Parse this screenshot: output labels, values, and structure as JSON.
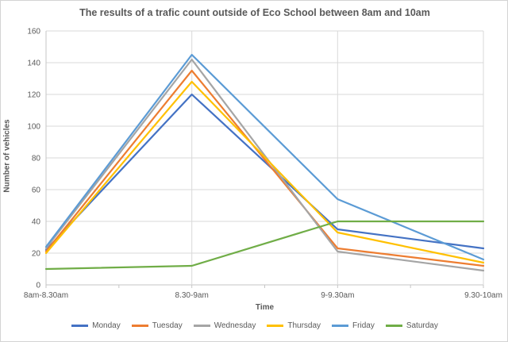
{
  "chart_data": {
    "type": "line",
    "title": "The results of a trafic count outside of Eco School between 8am and 10am",
    "xlabel": "Time",
    "ylabel": "Number of vehicles",
    "categories": [
      "8am-8.30am",
      "8.30-9am",
      "9-9.30am",
      "9.30-10am"
    ],
    "series": [
      {
        "name": "Monday",
        "color": "#4472C4",
        "values": [
          22,
          120,
          35,
          23
        ]
      },
      {
        "name": "Tuesday",
        "color": "#ED7D31",
        "values": [
          21,
          135,
          23,
          12
        ]
      },
      {
        "name": "Wednesday",
        "color": "#A5A5A5",
        "values": [
          23,
          142,
          21,
          9
        ]
      },
      {
        "name": "Thursday",
        "color": "#FFC000",
        "values": [
          20,
          128,
          33,
          14
        ]
      },
      {
        "name": "Friday",
        "color": "#5B9BD5",
        "values": [
          24,
          145,
          54,
          16
        ]
      },
      {
        "name": "Saturday",
        "color": "#70AD47",
        "values": [
          10,
          12,
          40,
          40
        ]
      }
    ],
    "ylim": [
      0,
      160
    ],
    "ytick_step": 20,
    "grid": "horizontal-and-vertical",
    "legend_position": "bottom",
    "gridline_color": "#D9D9D9",
    "axis_line_color": "#C6C6C6",
    "text_color": "#595959"
  }
}
